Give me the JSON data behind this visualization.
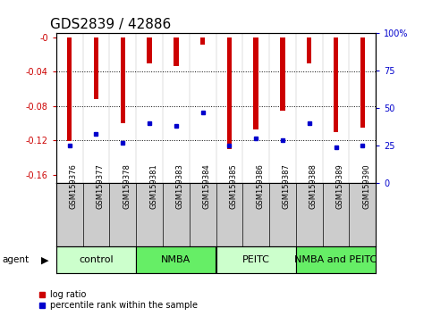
{
  "title": "GDS2839 / 42886",
  "samples": [
    "GSM159376",
    "GSM159377",
    "GSM159378",
    "GSM159381",
    "GSM159383",
    "GSM159384",
    "GSM159385",
    "GSM159386",
    "GSM159387",
    "GSM159388",
    "GSM159389",
    "GSM159390"
  ],
  "log_ratio": [
    -0.121,
    -0.072,
    -0.1,
    -0.03,
    -0.033,
    -0.008,
    -0.13,
    -0.107,
    -0.085,
    -0.03,
    -0.11,
    -0.105
  ],
  "percentile_rank": [
    25,
    33,
    27,
    40,
    38,
    47,
    25,
    30,
    29,
    40,
    24,
    25
  ],
  "groups": [
    {
      "label": "control",
      "start": 0,
      "end": 3,
      "color": "#ccffcc"
    },
    {
      "label": "NMBA",
      "start": 3,
      "end": 6,
      "color": "#66ee66"
    },
    {
      "label": "PEITC",
      "start": 6,
      "end": 9,
      "color": "#ccffcc"
    },
    {
      "label": "NMBA and PEITC",
      "start": 9,
      "end": 12,
      "color": "#66ee66"
    }
  ],
  "ylim_left": [
    -0.17,
    0.005
  ],
  "ylim_right": [
    0,
    100
  ],
  "bar_color": "#cc0000",
  "dot_color": "#0000cc",
  "bg_color": "#ffffff",
  "label_box_color": "#cccccc",
  "left_tick_color": "#cc0000",
  "right_tick_color": "#0000cc",
  "title_fontsize": 11,
  "tick_fontsize": 7,
  "sample_fontsize": 6,
  "group_fontsize": 8,
  "legend_fontsize": 7,
  "bar_width": 0.18
}
